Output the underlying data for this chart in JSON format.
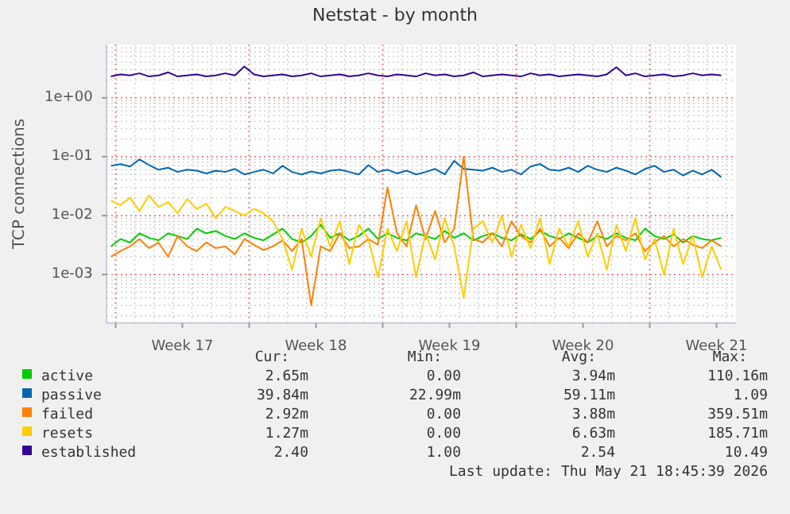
{
  "chart_data": {
    "type": "line",
    "title": "Netstat - by month",
    "ylabel": "TCP connections",
    "log": true,
    "grid": true,
    "legend": "bottom",
    "marker": "none",
    "line_style": "solid",
    "xlim": [
      "2026-04-19T12:30",
      "2026-05-22T12:30"
    ],
    "xticks": [
      {
        "value": "2026-04-20",
        "label": null
      },
      {
        "value": "2026-04-23T12:00",
        "label": "Week 17"
      },
      {
        "value": "2026-04-27",
        "label": null
      },
      {
        "value": "2026-04-30T12:00",
        "label": "Week 18"
      },
      {
        "value": "2026-05-04",
        "label": null
      },
      {
        "value": "2026-05-07T12:00",
        "label": "Week 19"
      },
      {
        "value": "2026-05-11",
        "label": null
      },
      {
        "value": "2026-05-14T12:00",
        "label": "Week 20"
      },
      {
        "value": "2026-05-18",
        "label": null
      },
      {
        "value": "2026-05-21T12:00",
        "label": "Week 21"
      }
    ],
    "ylim": [
      0.00015,
      8
    ],
    "yticks": [
      {
        "value": 0.001,
        "label": "1e-03"
      },
      {
        "value": 0.01,
        "label": "1e-02"
      },
      {
        "value": 0.1,
        "label": "1e-01"
      },
      {
        "value": 1,
        "label": "1e+00"
      }
    ],
    "x": [
      "2026-04-19T18:00",
      "2026-04-20T06:00",
      "2026-04-20T18:00",
      "2026-04-21T06:00",
      "2026-04-21T18:00",
      "2026-04-22T06:00",
      "2026-04-22T18:00",
      "2026-04-23T06:00",
      "2026-04-23T18:00",
      "2026-04-24T06:00",
      "2026-04-24T18:00",
      "2026-04-25T06:00",
      "2026-04-25T18:00",
      "2026-04-26T06:00",
      "2026-04-26T18:00",
      "2026-04-27T06:00",
      "2026-04-27T18:00",
      "2026-04-28T06:00",
      "2026-04-28T18:00",
      "2026-04-29T06:00",
      "2026-04-29T18:00",
      "2026-04-30T06:00",
      "2026-04-30T18:00",
      "2026-05-01T06:00",
      "2026-05-01T18:00",
      "2026-05-02T06:00",
      "2026-05-02T18:00",
      "2026-05-03T06:00",
      "2026-05-03T18:00",
      "2026-05-04T06:00",
      "2026-05-04T18:00",
      "2026-05-05T06:00",
      "2026-05-05T18:00",
      "2026-05-06T06:00",
      "2026-05-06T18:00",
      "2026-05-07T06:00",
      "2026-05-07T18:00",
      "2026-05-08T06:00",
      "2026-05-08T18:00",
      "2026-05-09T06:00",
      "2026-05-09T18:00",
      "2026-05-10T06:00",
      "2026-05-10T18:00",
      "2026-05-11T06:00",
      "2026-05-11T18:00",
      "2026-05-12T06:00",
      "2026-05-12T18:00",
      "2026-05-13T06:00",
      "2026-05-13T18:00",
      "2026-05-14T06:00",
      "2026-05-14T18:00",
      "2026-05-15T06:00",
      "2026-05-15T18:00",
      "2026-05-16T06:00",
      "2026-05-16T18:00",
      "2026-05-17T06:00",
      "2026-05-17T18:00",
      "2026-05-18T06:00",
      "2026-05-18T18:00",
      "2026-05-19T06:00",
      "2026-05-19T18:00",
      "2026-05-20T06:00",
      "2026-05-20T18:00",
      "2026-05-21T06:00",
      "2026-05-21T18:00"
    ],
    "series": [
      {
        "name": "active",
        "color": "#00cc00",
        "values": [
          0.003,
          0.004,
          0.0035,
          0.005,
          0.0042,
          0.0038,
          0.005,
          0.0045,
          0.004,
          0.006,
          0.005,
          0.0055,
          0.0045,
          0.004,
          0.005,
          0.0042,
          0.0038,
          0.0048,
          0.006,
          0.004,
          0.0035,
          0.0045,
          0.007,
          0.0042,
          0.005,
          0.0038,
          0.0045,
          0.006,
          0.004,
          0.005,
          0.0042,
          0.0038,
          0.005,
          0.0045,
          0.004,
          0.0055,
          0.0042,
          0.005,
          0.0038,
          0.0045,
          0.005,
          0.0042,
          0.0038,
          0.0048,
          0.004,
          0.0055,
          0.0045,
          0.004,
          0.005,
          0.0042,
          0.0035,
          0.0045,
          0.004,
          0.005,
          0.0042,
          0.0038,
          0.006,
          0.0045,
          0.004,
          0.0048,
          0.0035,
          0.0045,
          0.004,
          0.0038,
          0.0042
        ]
      },
      {
        "name": "passive",
        "color": "#0066b3",
        "values": [
          0.07,
          0.075,
          0.068,
          0.09,
          0.072,
          0.06,
          0.065,
          0.055,
          0.06,
          0.058,
          0.052,
          0.058,
          0.055,
          0.062,
          0.05,
          0.055,
          0.06,
          0.052,
          0.07,
          0.055,
          0.05,
          0.056,
          0.052,
          0.058,
          0.06,
          0.055,
          0.05,
          0.072,
          0.055,
          0.06,
          0.052,
          0.058,
          0.05,
          0.055,
          0.062,
          0.05,
          0.085,
          0.062,
          0.06,
          0.058,
          0.065,
          0.055,
          0.06,
          0.05,
          0.068,
          0.075,
          0.06,
          0.058,
          0.065,
          0.055,
          0.07,
          0.06,
          0.055,
          0.065,
          0.058,
          0.05,
          0.062,
          0.07,
          0.055,
          0.06,
          0.048,
          0.058,
          0.05,
          0.06,
          0.045
        ]
      },
      {
        "name": "failed",
        "color": "#ff8000",
        "values": [
          0.002,
          0.0025,
          0.003,
          0.004,
          0.0028,
          0.0035,
          0.002,
          0.0045,
          0.003,
          0.0025,
          0.0035,
          0.0028,
          0.003,
          0.0022,
          0.004,
          0.0032,
          0.0026,
          0.003,
          0.0038,
          0.0025,
          0.004,
          0.0003,
          0.003,
          0.0025,
          0.005,
          0.0028,
          0.003,
          0.004,
          0.0032,
          0.03,
          0.005,
          0.003,
          0.015,
          0.004,
          0.012,
          0.0035,
          0.006,
          0.1,
          0.004,
          0.0035,
          0.005,
          0.003,
          0.008,
          0.0045,
          0.0035,
          0.006,
          0.003,
          0.0042,
          0.0028,
          0.005,
          0.0035,
          0.008,
          0.003,
          0.0045,
          0.0038,
          0.005,
          0.0025,
          0.0035,
          0.0045,
          0.003,
          0.004,
          0.0032,
          0.0028,
          0.0038,
          0.003
        ]
      },
      {
        "name": "resets",
        "color": "#ffcc00",
        "values": [
          0.018,
          0.015,
          0.02,
          0.012,
          0.022,
          0.014,
          0.017,
          0.011,
          0.019,
          0.013,
          0.016,
          0.009,
          0.014,
          0.012,
          0.01,
          0.013,
          0.011,
          0.008,
          0.004,
          0.0012,
          0.006,
          0.002,
          0.009,
          0.003,
          0.008,
          0.0015,
          0.007,
          0.004,
          0.0009,
          0.006,
          0.0025,
          0.008,
          0.0009,
          0.005,
          0.0018,
          0.009,
          0.003,
          0.0004,
          0.006,
          0.008,
          0.0035,
          0.01,
          0.002,
          0.007,
          0.0028,
          0.009,
          0.0015,
          0.006,
          0.003,
          0.008,
          0.002,
          0.005,
          0.0012,
          0.007,
          0.0025,
          0.009,
          0.0018,
          0.004,
          0.001,
          0.006,
          0.0015,
          0.0045,
          0.0009,
          0.003,
          0.0012
        ]
      },
      {
        "name": "established",
        "color": "#330099",
        "values": [
          2.3,
          2.5,
          2.4,
          2.6,
          2.3,
          2.4,
          2.7,
          2.3,
          2.4,
          2.5,
          2.3,
          2.4,
          2.6,
          2.4,
          3.4,
          2.5,
          2.3,
          2.4,
          2.5,
          2.3,
          2.4,
          2.6,
          2.3,
          2.4,
          2.5,
          2.3,
          2.4,
          2.6,
          2.4,
          2.3,
          2.5,
          2.4,
          2.3,
          2.6,
          2.4,
          2.5,
          2.3,
          2.4,
          2.7,
          2.3,
          2.4,
          2.5,
          2.4,
          2.3,
          2.6,
          2.4,
          2.5,
          2.3,
          2.4,
          2.5,
          2.4,
          2.3,
          2.5,
          3.3,
          2.4,
          2.6,
          2.3,
          2.4,
          2.5,
          2.3,
          2.4,
          2.6,
          2.4,
          2.5,
          2.4
        ]
      }
    ],
    "annotations": [
      "Cur:",
      "Min:",
      "Avg:",
      "Max:",
      "2.65m",
      "0.00",
      "3.94m",
      "110.16m",
      "39.84m",
      "22.99m",
      "59.11m",
      "1.09",
      "2.92m",
      "0.00",
      "3.88m",
      "359.51m",
      "1.27m",
      "0.00",
      "6.63m",
      "185.71m",
      "2.40",
      "1.00",
      "2.54",
      "10.49",
      "Last update: Thu May 21 18:45:39 2026"
    ]
  }
}
